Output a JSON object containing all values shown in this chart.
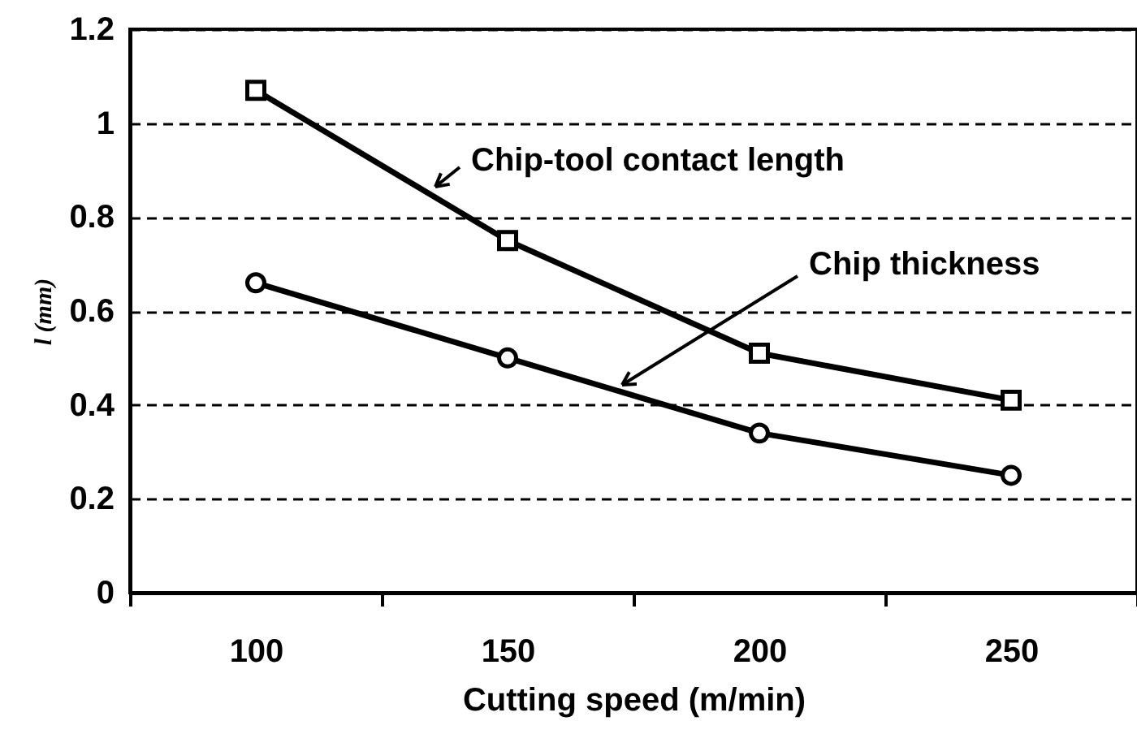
{
  "chart_data": {
    "type": "line",
    "xlabel": "Cutting speed (m/min)",
    "ylabel": "l (mm)",
    "categories": [
      "100",
      "150",
      "200",
      "250"
    ],
    "ylim": [
      0,
      1.2
    ],
    "yticks": [
      0,
      0.2,
      0.4,
      0.6,
      0.8,
      1,
      1.2
    ],
    "grid": "y",
    "line_style": "solid",
    "series": [
      {
        "name": "Chip-tool contact length",
        "color": "#000000",
        "marker": "square",
        "values": [
          1.07,
          0.75,
          0.51,
          0.41
        ]
      },
      {
        "name": "Chip thickness",
        "color": "#000000",
        "marker": "circle",
        "values": [
          0.66,
          0.5,
          0.34,
          0.25
        ]
      }
    ]
  }
}
